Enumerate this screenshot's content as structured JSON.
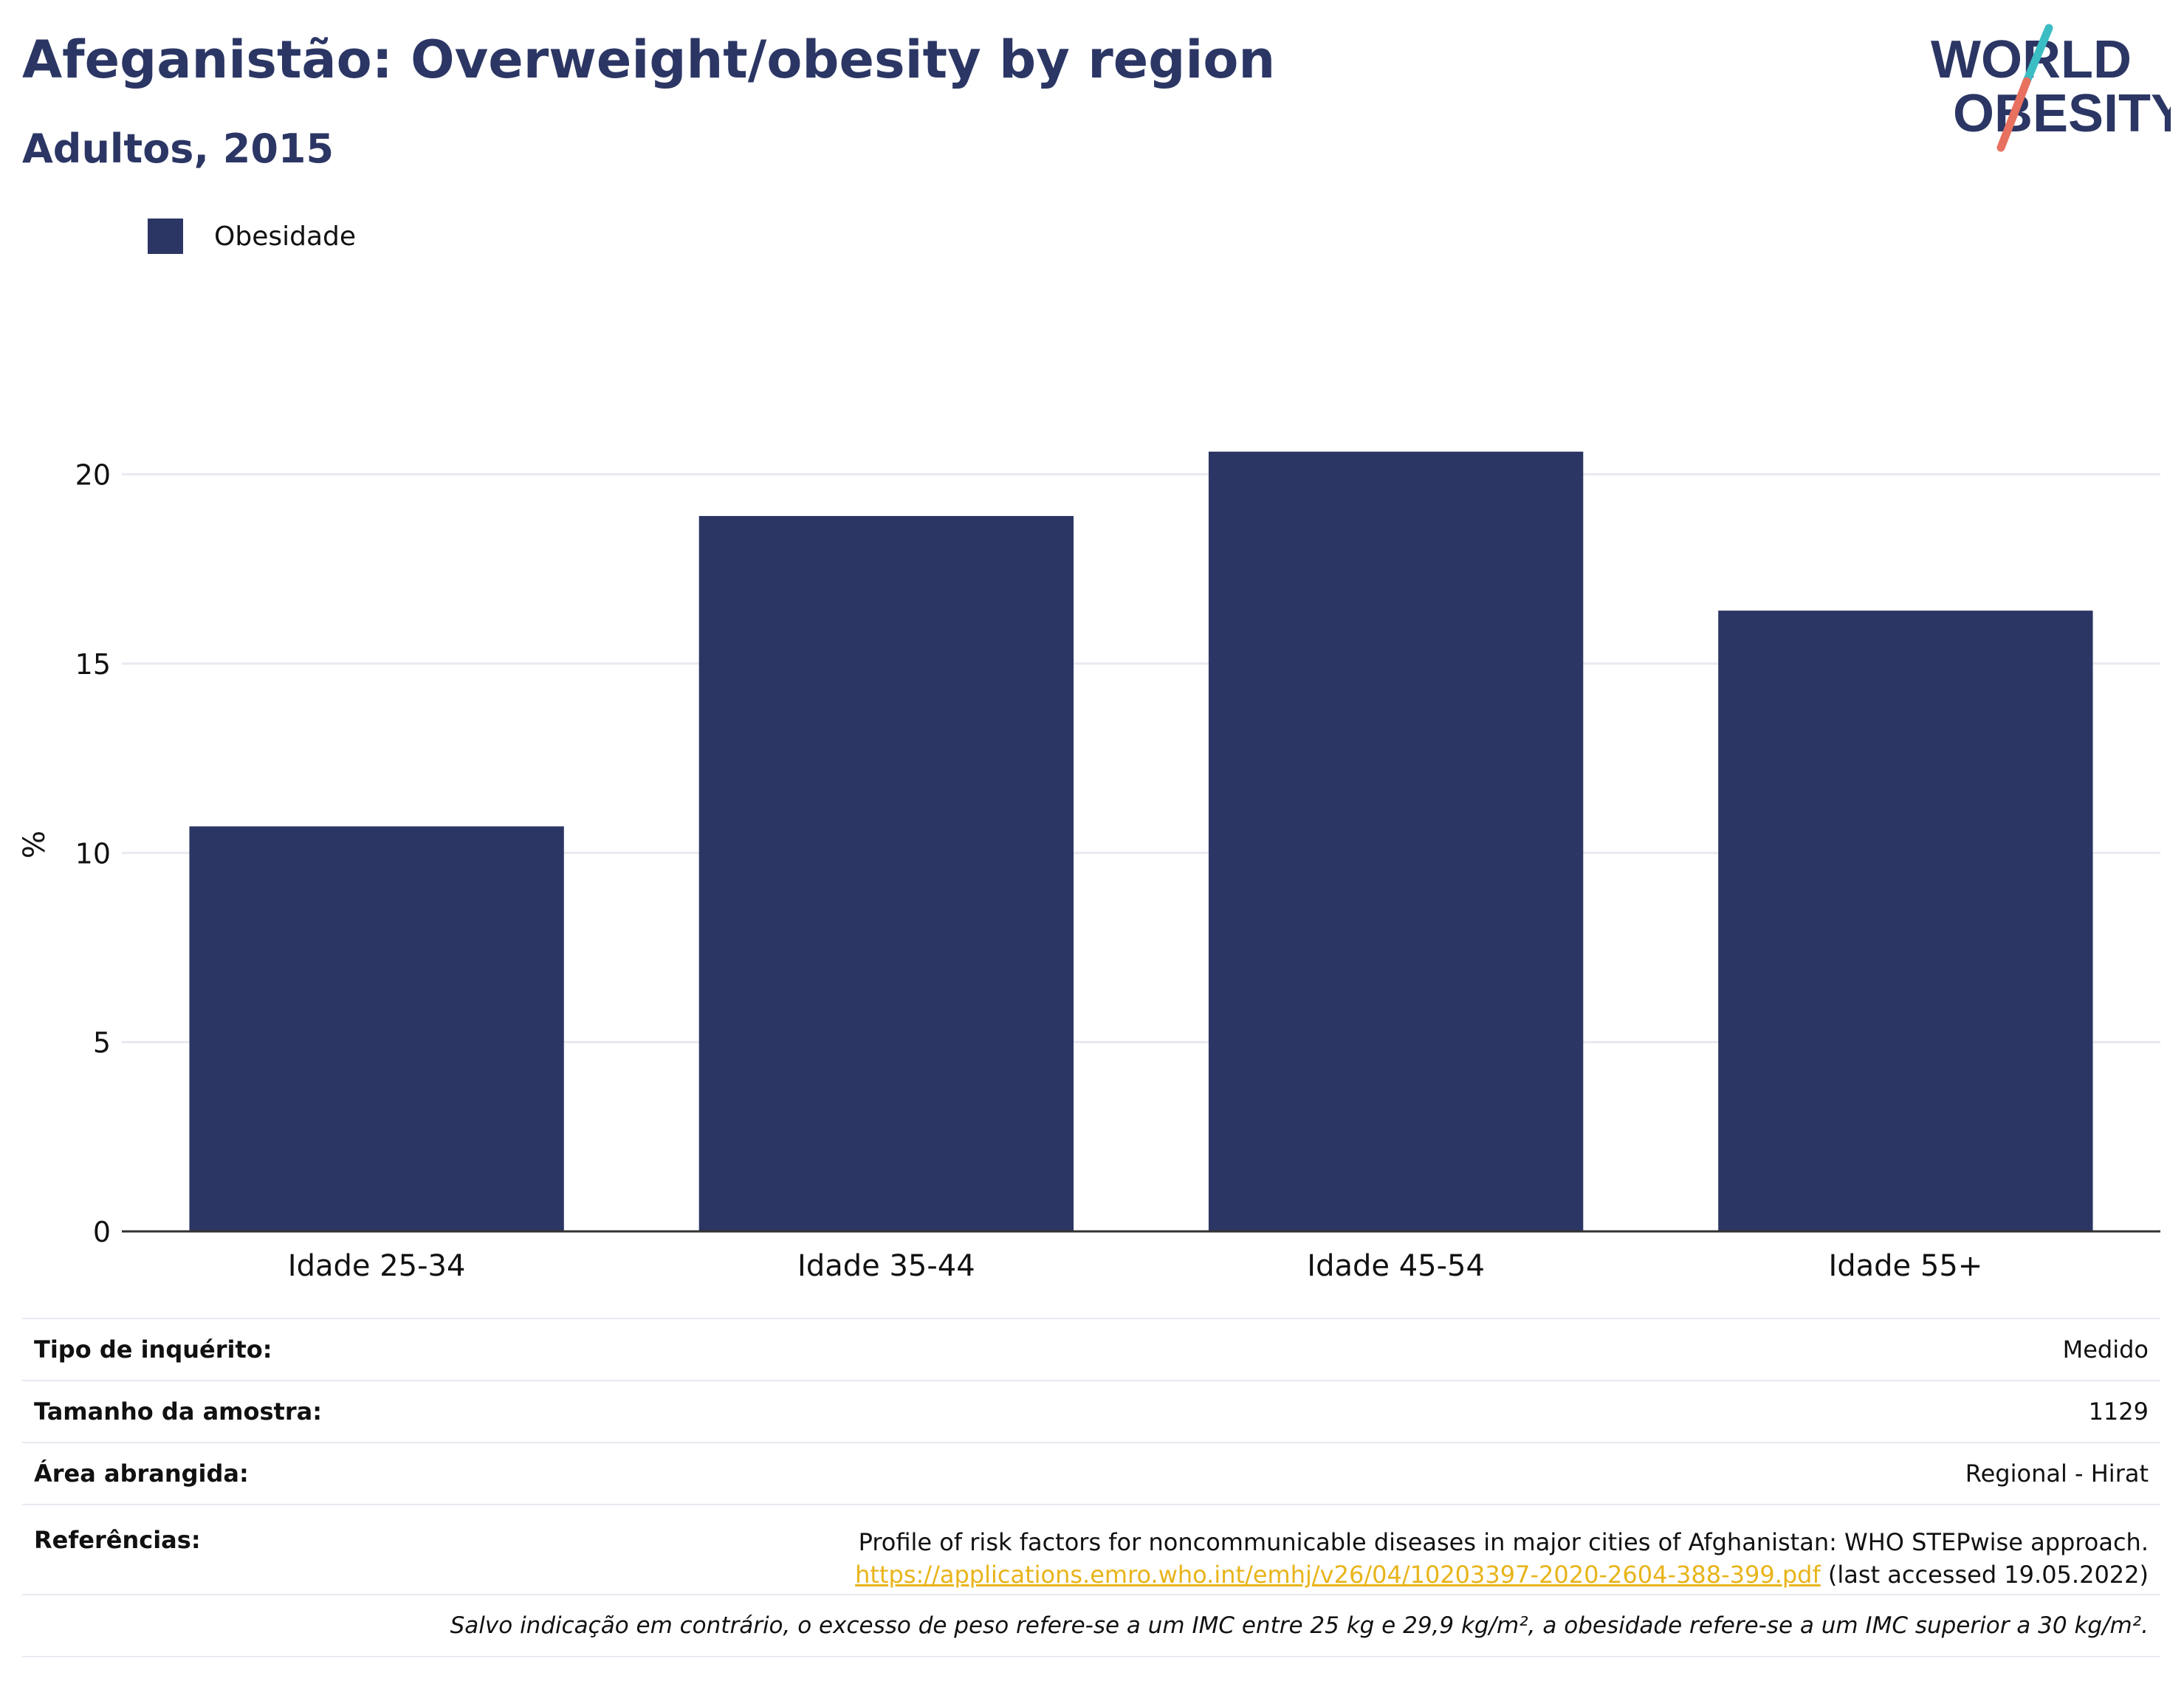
{
  "header": {
    "title": "Afeganistão: Overweight/obesity by region",
    "subtitle": "Adultos, 2015"
  },
  "logo": {
    "line1": "WORLD",
    "line2": "OBESITY"
  },
  "colors": {
    "bar": "#2b3664",
    "logo_teal": "#3bbdc4",
    "logo_coral": "#e8705f",
    "link": "#e8b41a"
  },
  "legend": {
    "items": [
      {
        "label": "Obesidade"
      }
    ]
  },
  "chart_data": {
    "type": "bar",
    "categories": [
      "Idade 25-34",
      "Idade 35-44",
      "Idade 45-54",
      "Idade 55+"
    ],
    "series": [
      {
        "name": "Obesidade",
        "values": [
          10.7,
          18.9,
          20.6,
          16.4
        ]
      }
    ],
    "ylabel": "%",
    "xlabel": "",
    "ylim": [
      0,
      22
    ],
    "yticks": [
      0,
      5,
      10,
      15,
      20
    ],
    "grid": true,
    "legend_position": "top-left"
  },
  "info": {
    "survey_type_label": "Tipo de inquérito:",
    "survey_type_value": "Medido",
    "sample_size_label": "Tamanho da amostra:",
    "sample_size_value": "1129",
    "area_label": "Área abrangida:",
    "area_value": "Regional - Hirat",
    "references_label": "Referências:",
    "reference_text": "Profile of risk factors for noncommunicable diseases in major cities of Afghanistan: WHO STEPwise approach.",
    "reference_link": "https://applications.emro.who.int/emhj/v26/04/10203397-2020-2604-388-399.pdf",
    "reference_accessed": "(last accessed 19.05.2022)",
    "note": "Salvo indicação em contrário, o excesso de peso refere-se a um IMC entre 25 kg e 29,9 kg/m², a obesidade refere-se a um IMC superior a 30 kg/m²."
  }
}
